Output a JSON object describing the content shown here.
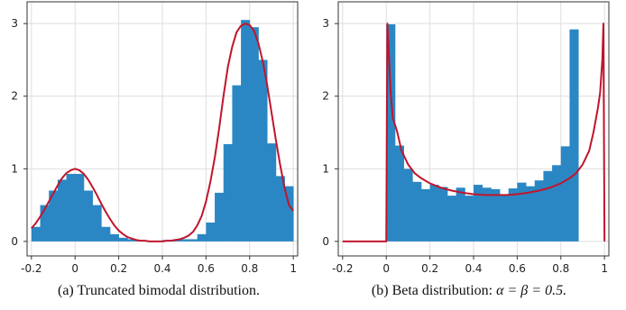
{
  "chart_data": [
    {
      "type": "bar",
      "caption": "(a) Truncated bimodal distribution.",
      "title": "",
      "xlabel": "",
      "ylabel": "",
      "xlim": [
        -0.22,
        1.02
      ],
      "ylim": [
        -0.2,
        3.3
      ],
      "x_ticks": [
        "-0.2",
        "0",
        "0.2",
        "0.4",
        "0.6",
        "0.8",
        "1"
      ],
      "x_tick_values": [
        -0.2,
        0,
        0.2,
        0.4,
        0.6,
        0.8,
        1
      ],
      "y_ticks": [
        "0",
        "1",
        "2",
        "3"
      ],
      "y_tick_values": [
        0,
        1,
        2,
        3
      ],
      "grid": true,
      "bin_edges": [
        -0.2,
        -0.16,
        -0.12,
        -0.08,
        -0.04,
        0,
        0.04,
        0.08,
        0.12,
        0.16,
        0.2,
        0.24,
        0.28,
        0.32,
        0.36,
        0.4,
        0.44,
        0.48,
        0.52,
        0.56,
        0.6,
        0.64,
        0.68,
        0.72,
        0.76,
        0.8,
        0.84,
        0.88,
        0.92,
        0.96,
        1.0
      ],
      "values": [
        0.2,
        0.5,
        0.7,
        0.85,
        0.93,
        0.93,
        0.7,
        0.5,
        0.2,
        0.1,
        0.05,
        0.03,
        0.01,
        0.01,
        0.0,
        0.02,
        0.02,
        0.03,
        0.03,
        0.1,
        0.26,
        0.67,
        1.34,
        2.15,
        3.05,
        2.95,
        2.5,
        1.35,
        0.9,
        0.76
      ],
      "bar_color": "#2b87c4",
      "density_curve": {
        "color": "#c0152c",
        "x": [
          -0.2,
          -0.18,
          -0.16,
          -0.14,
          -0.12,
          -0.1,
          -0.08,
          -0.06,
          -0.04,
          -0.02,
          0,
          0.02,
          0.04,
          0.06,
          0.08,
          0.1,
          0.12,
          0.14,
          0.16,
          0.18,
          0.2,
          0.22,
          0.24,
          0.26,
          0.28,
          0.3,
          0.32,
          0.34,
          0.36,
          0.38,
          0.4,
          0.42,
          0.44,
          0.46,
          0.48,
          0.5,
          0.52,
          0.54,
          0.56,
          0.58,
          0.6,
          0.62,
          0.64,
          0.66,
          0.68,
          0.7,
          0.72,
          0.74,
          0.76,
          0.78,
          0.8,
          0.82,
          0.84,
          0.86,
          0.88,
          0.9,
          0.92,
          0.94,
          0.96,
          0.98,
          1.0
        ],
        "y": [
          0.18,
          0.25,
          0.34,
          0.44,
          0.55,
          0.66,
          0.77,
          0.87,
          0.94,
          0.98,
          1.0,
          0.98,
          0.93,
          0.85,
          0.75,
          0.64,
          0.52,
          0.41,
          0.31,
          0.22,
          0.15,
          0.1,
          0.06,
          0.04,
          0.02,
          0.01,
          0.01,
          0.0,
          0.0,
          0.0,
          0.0,
          0.01,
          0.01,
          0.02,
          0.03,
          0.05,
          0.08,
          0.13,
          0.22,
          0.35,
          0.55,
          0.82,
          1.15,
          1.55,
          2.0,
          2.4,
          2.68,
          2.88,
          2.97,
          3.0,
          2.98,
          2.9,
          2.73,
          2.48,
          2.16,
          1.78,
          1.4,
          1.05,
          0.74,
          0.5,
          0.42
        ]
      }
    },
    {
      "type": "bar",
      "caption": "(b) Beta distribution: ",
      "caption_math": "α = β = 0.5.",
      "title": "",
      "xlabel": "",
      "ylabel": "",
      "xlim": [
        -0.22,
        1.02
      ],
      "ylim": [
        -0.2,
        3.3
      ],
      "x_ticks": [
        "-0.2",
        "0",
        "0.2",
        "0.4",
        "0.6",
        "0.8",
        "1"
      ],
      "x_tick_values": [
        -0.2,
        0,
        0.2,
        0.4,
        0.6,
        0.8,
        1
      ],
      "y_ticks": [
        "0",
        "1",
        "2",
        "3"
      ],
      "y_tick_values": [
        0,
        1,
        2,
        3
      ],
      "grid": true,
      "bin_edges": [
        0.0,
        0.04,
        0.08,
        0.12,
        0.16,
        0.2,
        0.24,
        0.28,
        0.32,
        0.36,
        0.4,
        0.44,
        0.48,
        0.52,
        0.56,
        0.6,
        0.64,
        0.68,
        0.72,
        0.76,
        0.8,
        0.84,
        0.88,
        0.92,
        0.96,
        1.0
      ],
      "values": [
        2.99,
        1.32,
        1.0,
        0.82,
        0.72,
        0.78,
        0.75,
        0.63,
        0.74,
        0.63,
        0.78,
        0.74,
        0.72,
        0.65,
        0.73,
        0.81,
        0.76,
        0.84,
        0.97,
        1.05,
        1.31,
        2.92,
        0,
        0,
        0
      ],
      "bar_color": "#2b87c4",
      "density_curve": {
        "color": "#c0152c",
        "x": [
          -0.2,
          0.0,
          0.005,
          0.01,
          0.02,
          0.03,
          0.05,
          0.07,
          0.1,
          0.13,
          0.16,
          0.2,
          0.25,
          0.3,
          0.35,
          0.4,
          0.45,
          0.5,
          0.55,
          0.6,
          0.65,
          0.7,
          0.75,
          0.8,
          0.84,
          0.87,
          0.9,
          0.93,
          0.95,
          0.97,
          0.98,
          0.99,
          0.995,
          1.0
        ],
        "y": [
          0.0,
          0.0,
          3.0,
          2.72,
          2.05,
          1.7,
          1.51,
          1.25,
          1.06,
          0.94,
          0.87,
          0.8,
          0.74,
          0.7,
          0.67,
          0.65,
          0.64,
          0.64,
          0.64,
          0.65,
          0.67,
          0.7,
          0.74,
          0.8,
          0.87,
          0.94,
          1.06,
          1.25,
          1.51,
          1.84,
          2.05,
          2.5,
          3.0,
          0.0
        ]
      }
    }
  ]
}
